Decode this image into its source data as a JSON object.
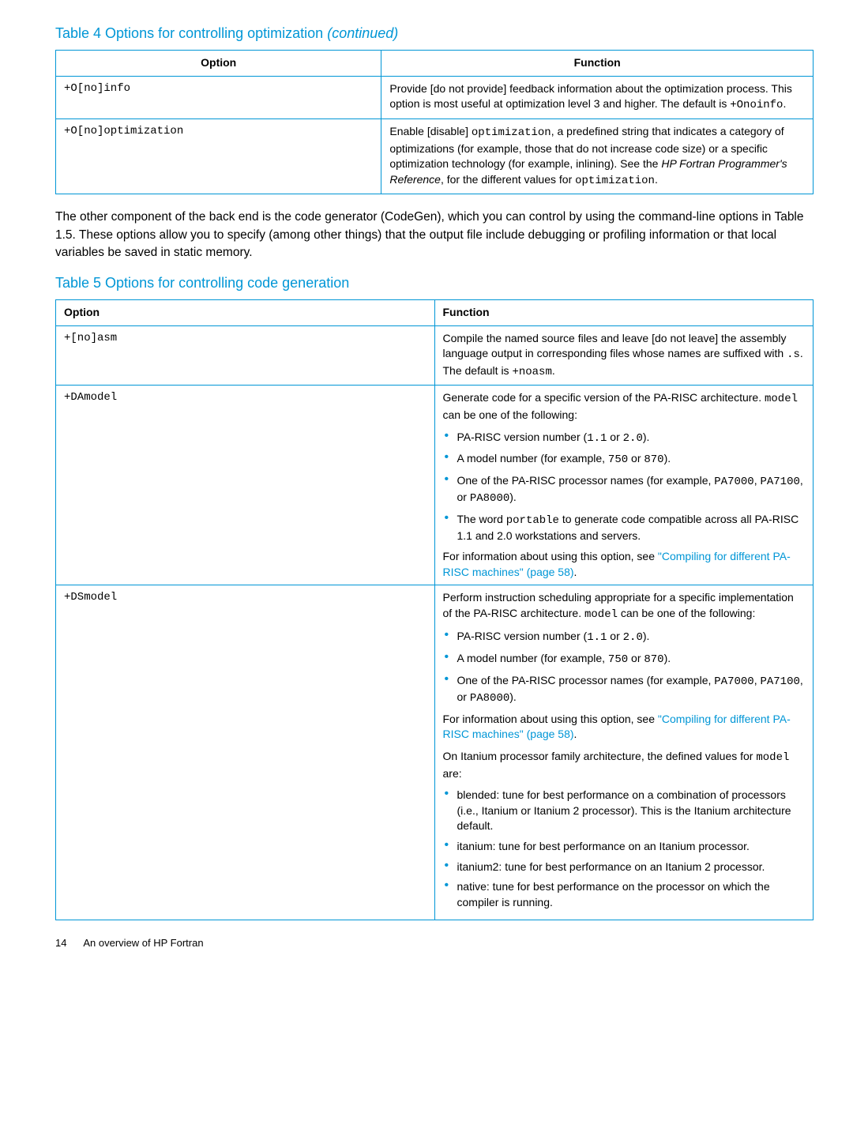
{
  "table4": {
    "caption": "Table 4 Options for controlling optimization",
    "continued": "(continued)",
    "headers": {
      "option": "Option",
      "function": "Function"
    },
    "rows": [
      {
        "option": "+O[no]info",
        "function": "Provide [do not provide] feedback information about the optimization process. This option is most useful at optimization level 3 and higher. The default is ",
        "code_tail": "+Onoinfo",
        "tail_period": "."
      },
      {
        "option": "+O[no]optimization",
        "f_pre": "Enable [disable] ",
        "f_code1": "optimization",
        "f_mid": ", a predefined string that indicates a category of optimizations (for example, those that do not increase code size) or a specific optimization technology (for example, inlining). See the ",
        "f_italic": "HP Fortran Programmer's Reference",
        "f_after_italic": ", for the different values for ",
        "f_code2": "optimization",
        "f_end": "."
      }
    ]
  },
  "paragraph": "The other component of the back end is the code generator (CodeGen), which you can control by using the command-line options in Table 1.5. These options allow you to specify (among other things) that the output file include debugging or profiling information or that local variables be saved in static memory.",
  "table5": {
    "caption": "Table 5 Options for controlling code generation",
    "headers": {
      "option": "Option",
      "function": "Function"
    },
    "row1": {
      "option": "+[no]asm",
      "f1": "Compile the named source files and leave [do not leave] the assembly language output in corresponding files whose names are suffixed with ",
      "c1": ".s",
      "f2": ". The default is ",
      "c2": "+noasm",
      "f3": "."
    },
    "row2": {
      "option": "+DAmodel",
      "intro_a": "Generate code for a specific version of the PA-RISC architecture. ",
      "intro_code": "model",
      "intro_b": " can be one of the following:",
      "b1a": "PA-RISC version number (",
      "b1c1": "1.1",
      "b1mid": "  or ",
      "b1c2": "2.0",
      "b1b": ").",
      "b2a": "A model number (for example, ",
      "b2c1": "750",
      "b2mid": " or ",
      "b2c2": "870",
      "b2b": ").",
      "b3a": "One of the PA-RISC processor names (for example, ",
      "b3c1": "PA7000",
      "b3s1": ", ",
      "b3c2": "PA7100",
      "b3s2": ", or ",
      "b3c3": "PA8000",
      "b3b": ").",
      "b4a": "The word ",
      "b4c": "portable",
      "b4b": " to generate code compatible across all PA-RISC 1.1 and 2.0 workstations and servers.",
      "info_a": "For information about using this option, see ",
      "info_link": "\"Compiling for different PA-RISC machines\" (page 58)",
      "info_b": "."
    },
    "row3": {
      "option": "+DSmodel",
      "intro_a": "Perform instruction scheduling appropriate for a specific implementation of the PA-RISC architecture. ",
      "intro_code": "model",
      "intro_b": " can be one of the following:",
      "b1a": "PA-RISC version number (",
      "b1c1": "1.1",
      "b1mid": " or ",
      "b1c2": "2.0",
      "b1b": ").",
      "b2a": "A model number (for example, ",
      "b2c1": "750",
      "b2mid": " or ",
      "b2c2": "870",
      "b2b": ").",
      "b3a": "One of the PA-RISC processor names (for example, ",
      "b3c1": "PA7000",
      "b3s1": ", ",
      "b3c2": "PA7100",
      "b3s2": ", or ",
      "b3c3": "PA8000",
      "b3b": ").",
      "info_a": "For information about using this option, see ",
      "info_link": "\"Compiling for different PA-RISC machines\" (page 58)",
      "info_b": ".",
      "it_a": "On Itanium processor family architecture, the defined values for ",
      "it_code": "model",
      "it_b": " are:",
      "bb1": "blended: tune for best performance on a combination of processors (i.e., Itanium or Itanium 2 processor). This is the Itanium architecture default.",
      "bb2": "itanium: tune for best performance on an Itanium processor.",
      "bb3": "itanium2: tune for best performance on an Itanium 2 processor.",
      "bb4": "native: tune for best performance on the processor on which the compiler is running."
    }
  },
  "footer": {
    "page": "14",
    "title": "An overview of HP Fortran"
  }
}
